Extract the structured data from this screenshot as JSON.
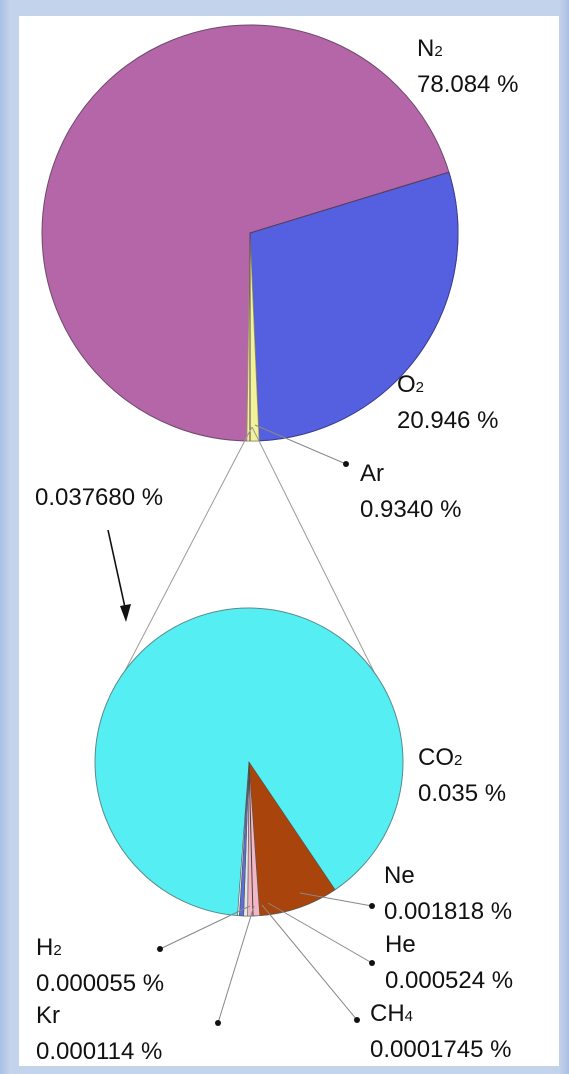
{
  "chart_data": [
    {
      "type": "pie",
      "slices": [
        {
          "label": "N",
          "sub": "2",
          "value_text": "78.084 %",
          "value": 78.084,
          "color": "#b466a8"
        },
        {
          "label": "O",
          "sub": "2",
          "value_text": "20.946 %",
          "value": 20.946,
          "color": "#5560e0"
        },
        {
          "label": "Ar",
          "sub": "",
          "value_text": "0.9340 %",
          "value": 0.934,
          "color": "#f2f29a"
        }
      ],
      "remainder_text": "0.037680 %",
      "remainder_value": 0.03768
    },
    {
      "type": "pie",
      "slices": [
        {
          "label": "CO",
          "sub": "2",
          "value_text": "0.035 %",
          "value": 0.035,
          "color": "#55eef2"
        },
        {
          "label": "Ne",
          "sub": "",
          "value_text": "0.001818 %",
          "value": 0.001818,
          "color": "#a8440c"
        },
        {
          "label": "He",
          "sub": "",
          "value_text": "0.000524 %",
          "value": 0.000524,
          "color": "#f4b6c4"
        },
        {
          "label": "CH",
          "sub": "4",
          "value_text": "0.0001745 %",
          "value": 0.0001745,
          "color": "#e6e6e6"
        },
        {
          "label": "Kr",
          "sub": "",
          "value_text": "0.000114 %",
          "value": 0.000114,
          "color": "#5b6fd8"
        },
        {
          "label": "H",
          "sub": "2",
          "value_text": "0.000055 %",
          "value": 5.5e-05,
          "color": "#f0f0f0"
        }
      ]
    }
  ]
}
